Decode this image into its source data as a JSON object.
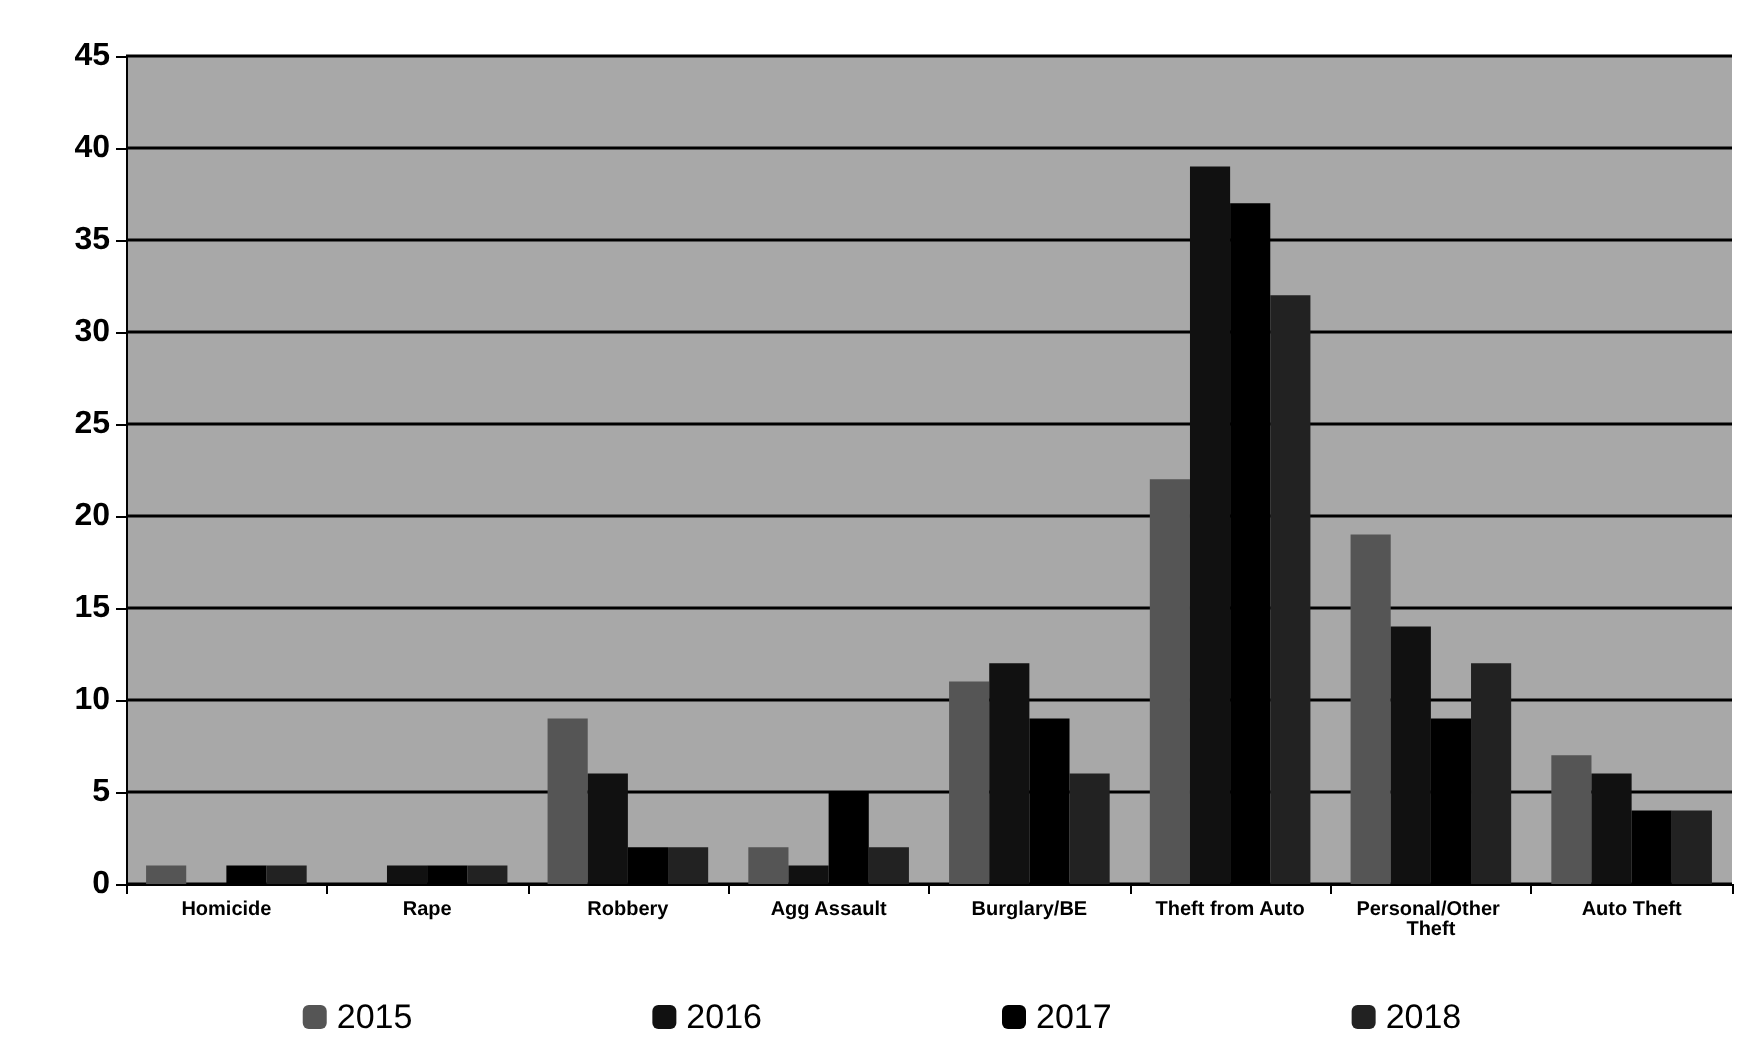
{
  "chart_data": {
    "type": "bar",
    "categories": [
      "Homicide",
      "Rape",
      "Robbery",
      "Agg Assault",
      "Burglary/BE",
      "Theft from Auto",
      "Personal/Other Theft",
      "Auto Theft"
    ],
    "series": [
      {
        "name": "2015",
        "color": "#555555",
        "values": [
          1,
          0,
          9,
          2,
          11,
          22,
          19,
          7
        ]
      },
      {
        "name": "2016",
        "color": "#111111",
        "values": [
          0,
          1,
          6,
          1,
          12,
          39,
          14,
          6
        ]
      },
      {
        "name": "2017",
        "color": "#000000",
        "values": [
          1,
          1,
          2,
          5,
          9,
          37,
          9,
          4
        ]
      },
      {
        "name": "2018",
        "color": "#222222",
        "values": [
          1,
          1,
          2,
          2,
          6,
          32,
          12,
          4
        ]
      }
    ],
    "ylim": [
      0,
      45
    ],
    "yticks": [
      0,
      5,
      10,
      15,
      20,
      25,
      30,
      35,
      40,
      45
    ],
    "grid": "y",
    "legend": "bottom"
  }
}
